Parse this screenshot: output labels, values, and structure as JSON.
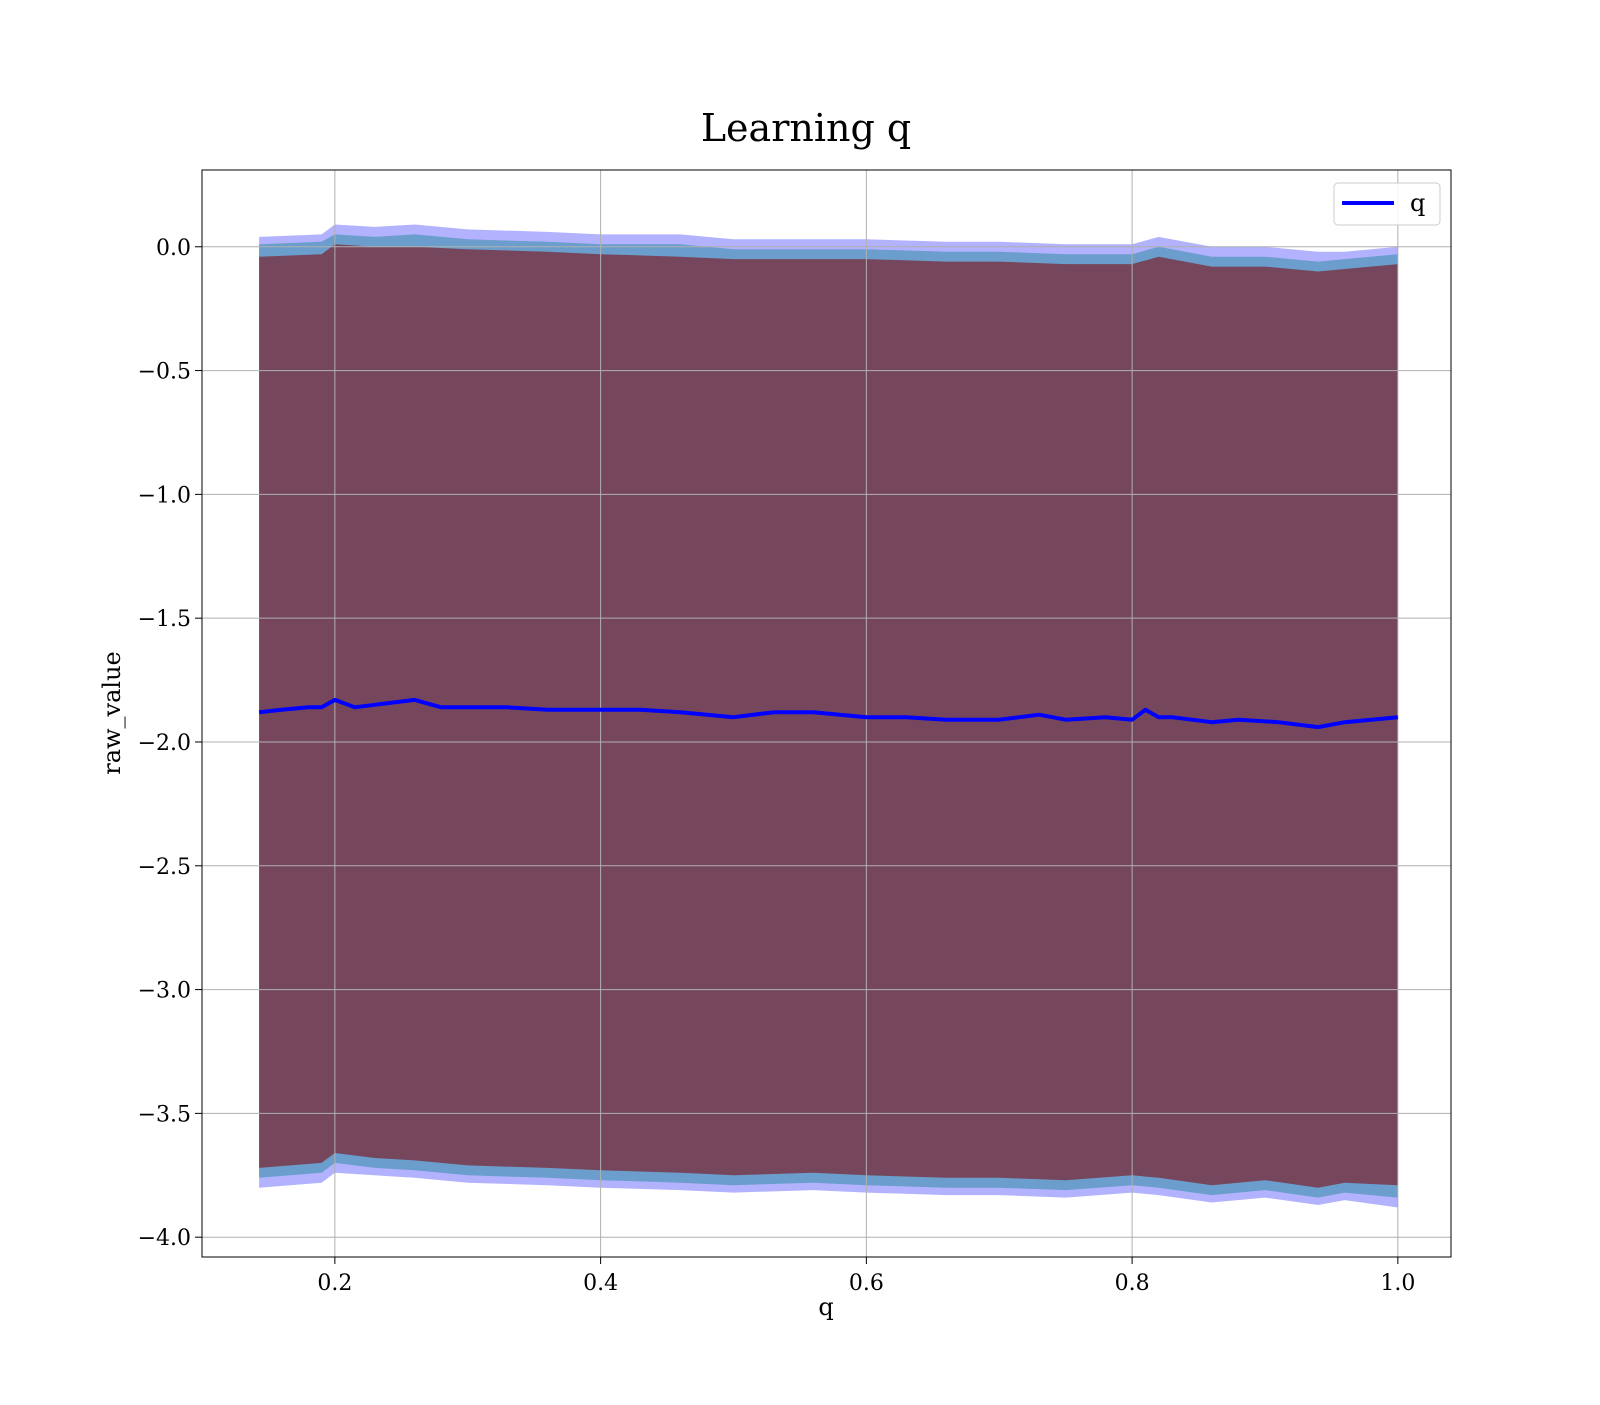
{
  "chart_data": {
    "type": "line",
    "title": "Learning q",
    "xlabel": "q",
    "ylabel": "raw_value",
    "xlim": [
      0.1,
      1.04
    ],
    "ylim": [
      -4.08,
      0.31
    ],
    "xticks": [
      0.2,
      0.4,
      0.6,
      0.8,
      1.0
    ],
    "xtick_labels": [
      "0.2",
      "0.4",
      "0.6",
      "0.8",
      "1.0"
    ],
    "yticks": [
      0.0,
      -0.5,
      -1.0,
      -1.5,
      -2.0,
      -2.5,
      -3.0,
      -3.5,
      -4.0
    ],
    "ytick_labels": [
      "0.0",
      "−0.5",
      "−1.0",
      "−1.5",
      "−2.0",
      "−2.5",
      "−3.0",
      "−3.5",
      "−4.0"
    ],
    "grid": true,
    "legend_placement": "top-right",
    "series": [
      {
        "name": "q",
        "color": "#0000ff",
        "x": [
          0.143,
          0.16,
          0.18,
          0.19,
          0.2,
          0.215,
          0.23,
          0.26,
          0.28,
          0.3,
          0.33,
          0.36,
          0.4,
          0.43,
          0.46,
          0.5,
          0.53,
          0.56,
          0.6,
          0.63,
          0.66,
          0.7,
          0.73,
          0.75,
          0.78,
          0.8,
          0.81,
          0.82,
          0.83,
          0.86,
          0.88,
          0.91,
          0.94,
          0.96,
          0.98,
          1.0
        ],
        "y": [
          -1.88,
          -1.87,
          -1.86,
          -1.86,
          -1.83,
          -1.86,
          -1.85,
          -1.83,
          -1.86,
          -1.86,
          -1.86,
          -1.87,
          -1.87,
          -1.87,
          -1.88,
          -1.9,
          -1.88,
          -1.88,
          -1.9,
          -1.9,
          -1.91,
          -1.91,
          -1.89,
          -1.91,
          -1.9,
          -1.91,
          -1.87,
          -1.9,
          -1.9,
          -1.92,
          -1.91,
          -1.92,
          -1.94,
          -1.92,
          -1.91,
          -1.9
        ]
      }
    ],
    "bands": [
      {
        "color": "#0000ff",
        "opacity": 0.3,
        "x": [
          0.143,
          0.19,
          0.2,
          0.23,
          0.26,
          0.3,
          0.36,
          0.4,
          0.46,
          0.5,
          0.56,
          0.6,
          0.66,
          0.7,
          0.75,
          0.8,
          0.82,
          0.86,
          0.9,
          0.94,
          0.96,
          1.0
        ],
        "upper": [
          0.04,
          0.05,
          0.09,
          0.08,
          0.09,
          0.07,
          0.06,
          0.05,
          0.05,
          0.03,
          0.03,
          0.03,
          0.02,
          0.02,
          0.01,
          0.01,
          0.04,
          0.0,
          0.0,
          -0.02,
          -0.02,
          0.0
        ],
        "lower": [
          -3.8,
          -3.78,
          -3.74,
          -3.75,
          -3.76,
          -3.78,
          -3.79,
          -3.8,
          -3.81,
          -3.82,
          -3.81,
          -3.82,
          -3.83,
          -3.83,
          -3.84,
          -3.82,
          -3.83,
          -3.86,
          -3.84,
          -3.87,
          -3.85,
          -3.88
        ]
      },
      {
        "color": "#008080",
        "opacity": 0.4,
        "x": [
          0.143,
          0.19,
          0.2,
          0.23,
          0.26,
          0.3,
          0.36,
          0.4,
          0.46,
          0.5,
          0.56,
          0.6,
          0.66,
          0.7,
          0.75,
          0.8,
          0.82,
          0.86,
          0.9,
          0.94,
          0.96,
          1.0
        ],
        "upper": [
          0.01,
          0.02,
          0.05,
          0.04,
          0.05,
          0.03,
          0.02,
          0.01,
          0.01,
          -0.01,
          -0.01,
          -0.01,
          -0.02,
          -0.02,
          -0.03,
          -0.03,
          0.0,
          -0.04,
          -0.04,
          -0.06,
          -0.05,
          -0.03
        ],
        "lower": [
          -3.76,
          -3.74,
          -3.7,
          -3.72,
          -3.73,
          -3.75,
          -3.76,
          -3.77,
          -3.78,
          -3.79,
          -3.78,
          -3.79,
          -3.8,
          -3.8,
          -3.81,
          -3.79,
          -3.8,
          -3.83,
          -3.81,
          -3.84,
          -3.82,
          -3.84
        ]
      },
      {
        "color": "#800000",
        "opacity": 0.55,
        "x": [
          0.143,
          0.19,
          0.2,
          0.23,
          0.26,
          0.3,
          0.36,
          0.4,
          0.46,
          0.5,
          0.56,
          0.6,
          0.66,
          0.7,
          0.75,
          0.8,
          0.82,
          0.86,
          0.9,
          0.94,
          0.96,
          1.0
        ],
        "upper": [
          -0.04,
          -0.03,
          0.01,
          0.0,
          0.0,
          -0.01,
          -0.02,
          -0.03,
          -0.04,
          -0.05,
          -0.05,
          -0.05,
          -0.06,
          -0.06,
          -0.07,
          -0.07,
          -0.04,
          -0.08,
          -0.08,
          -0.1,
          -0.09,
          -0.07
        ],
        "lower": [
          -3.72,
          -3.7,
          -3.66,
          -3.68,
          -3.69,
          -3.71,
          -3.72,
          -3.73,
          -3.74,
          -3.75,
          -3.74,
          -3.75,
          -3.76,
          -3.76,
          -3.77,
          -3.75,
          -3.76,
          -3.79,
          -3.77,
          -3.8,
          -3.78,
          -3.79
        ]
      }
    ]
  }
}
